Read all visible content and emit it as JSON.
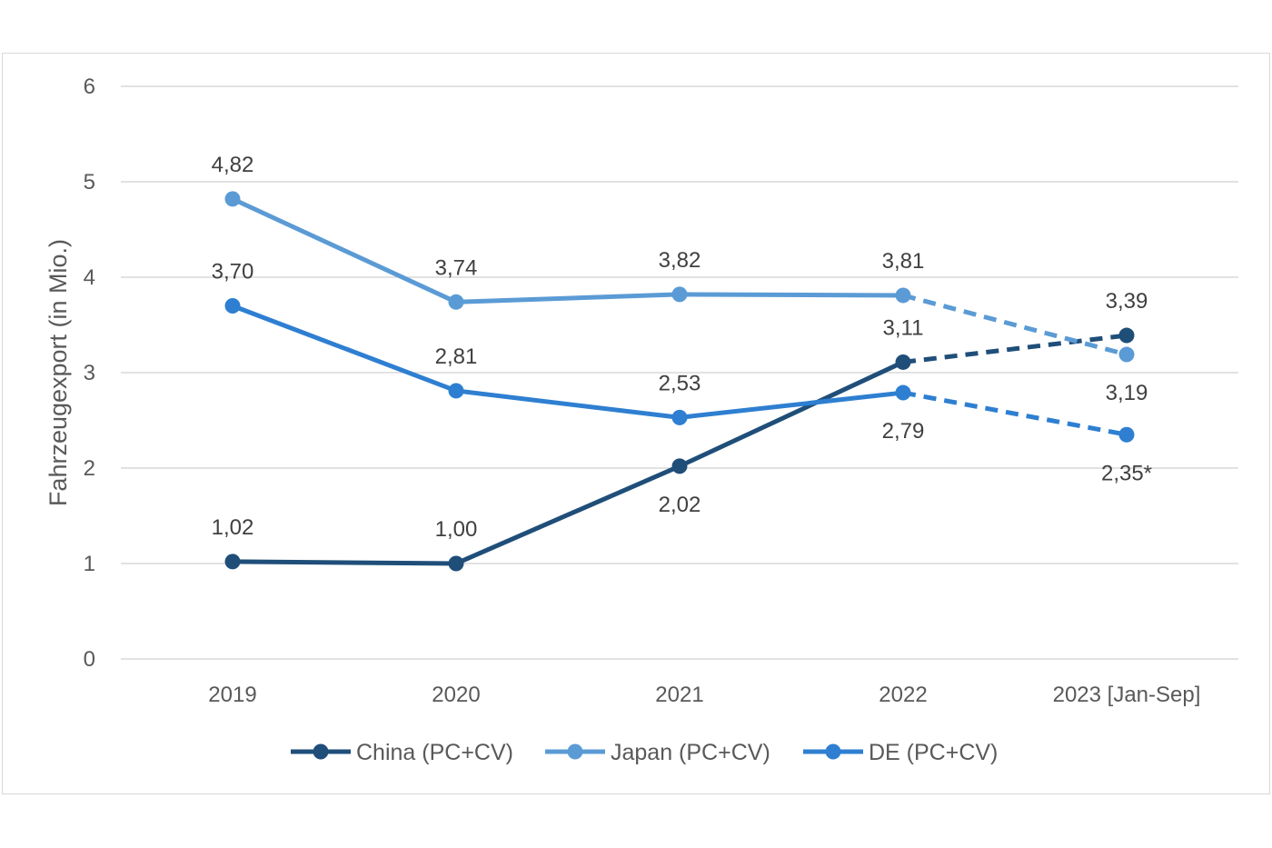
{
  "chart_data": {
    "type": "line",
    "title": "",
    "xlabel": "",
    "ylabel": "Fahrzeugexport (in Mio.)",
    "ylim": [
      0,
      6
    ],
    "yticks": [
      "0",
      "1",
      "2",
      "3",
      "4",
      "5",
      "6"
    ],
    "categories": [
      "2019",
      "2020",
      "2021",
      "2022",
      "2023 [Jan-Sep]"
    ],
    "grid": true,
    "legend_position": "bottom",
    "series": [
      {
        "name": "China (PC+CV)",
        "color": "#1f4e79",
        "values": [
          1.02,
          1.0,
          2.02,
          3.11,
          3.39
        ],
        "labels": [
          "1,02",
          "1,00",
          "2,02",
          "3,11",
          "3,39"
        ],
        "label_pos": [
          "above",
          "above",
          "below",
          "above",
          "above"
        ],
        "dashed_last_segment": true
      },
      {
        "name": "Japan (PC+CV)",
        "color": "#5b9bd5",
        "values": [
          4.82,
          3.74,
          3.82,
          3.81,
          3.19
        ],
        "labels": [
          "4,82",
          "3,74",
          "3,82",
          "3,81",
          "3,19"
        ],
        "label_pos": [
          "above",
          "above",
          "above",
          "above",
          "below"
        ],
        "dashed_last_segment": true
      },
      {
        "name": "DE (PC+CV)",
        "color": "#2e7fd1",
        "values": [
          3.7,
          2.81,
          2.53,
          2.79,
          2.35
        ],
        "labels": [
          "3,70",
          "2,81",
          "2,53",
          "2,79",
          "2,35*"
        ],
        "label_pos": [
          "above",
          "above",
          "above",
          "below",
          "below"
        ],
        "dashed_last_segment": true
      }
    ]
  }
}
